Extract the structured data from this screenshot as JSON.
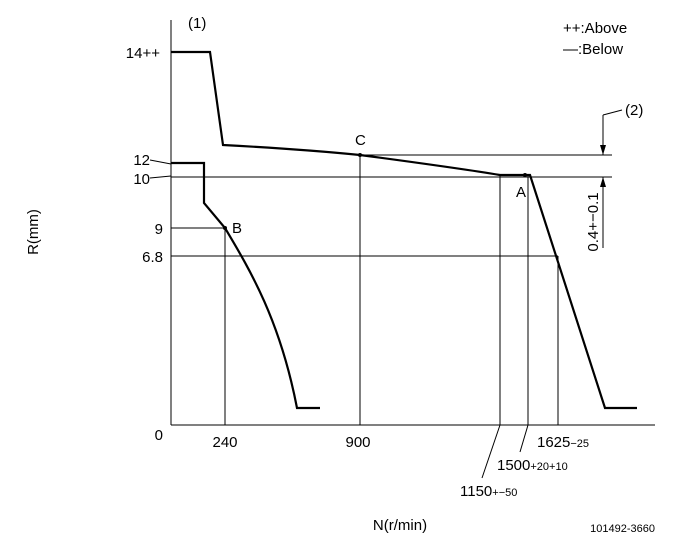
{
  "diagram": {
    "note_1": "(1)",
    "legend_above": "++:Above",
    "legend_below": "—:Below",
    "y_axis_title": "R(mm)",
    "x_axis_title": "N(r/min)",
    "drawing_number": "101492-3660",
    "y_labels": [
      "14++",
      "12",
      "10",
      "9",
      "6.8",
      "0"
    ],
    "x_labels": [
      "240",
      "900"
    ],
    "x_label_1625": {
      "base": "1625",
      "tol": "−25"
    },
    "x_label_1500": {
      "base": "1500",
      "tol": "+20+10"
    },
    "x_label_1150": {
      "base": "1150",
      "tol": "+−50"
    },
    "points": [
      "A",
      "B",
      "C"
    ],
    "note_2": "(2)",
    "dimension": "0.4+−0.1"
  }
}
